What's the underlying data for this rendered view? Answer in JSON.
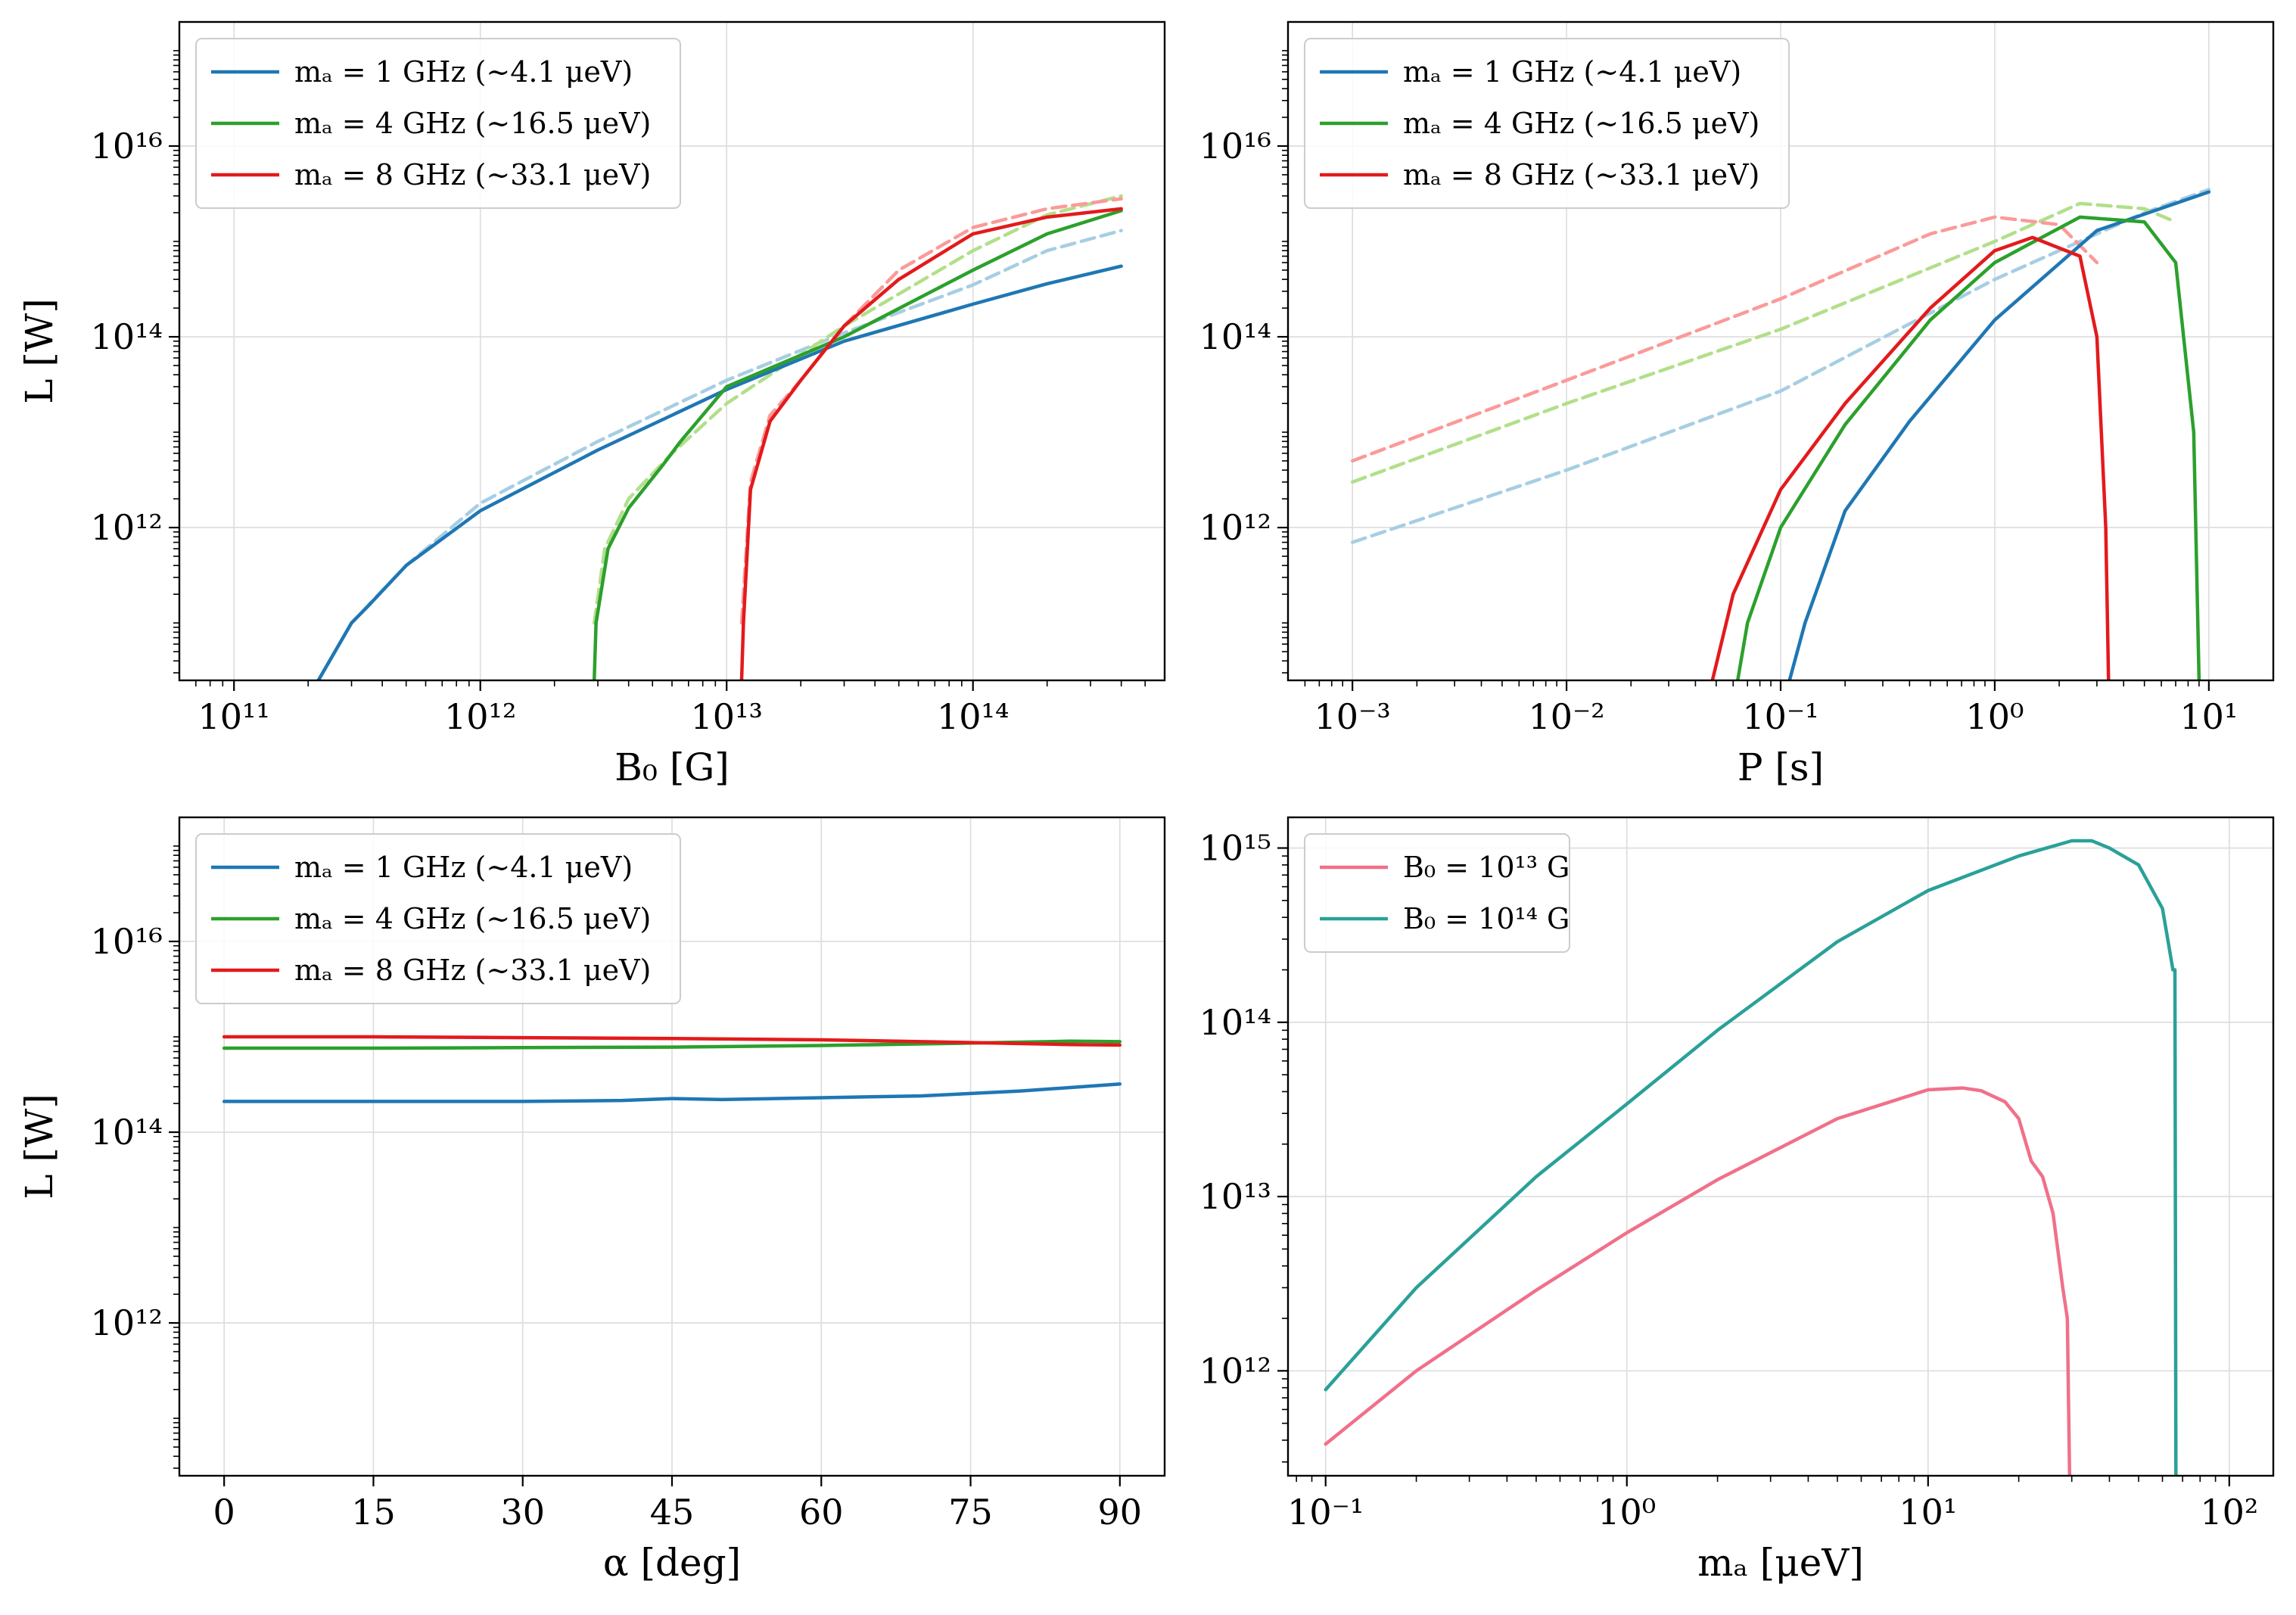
{
  "colors": {
    "blue": "#1f77b4",
    "green": "#2ca02c",
    "red": "#e31a1c",
    "light_blue": "#a6cee3",
    "light_green": "#b2df8a",
    "light_red": "#fb9a99",
    "pink": "#f0708a",
    "teal": "#2aa198"
  },
  "chart_data": [
    {
      "id": "B0",
      "type": "line",
      "xlabel": "B₀ [G]",
      "ylabel": "L [W]",
      "xscale": "log",
      "yscale": "log",
      "xlim": [
        60000000000.0,
        600000000000000.0
      ],
      "ylim": [
        25000000000.0,
        2e+17
      ],
      "xticks": [
        100000000000.0,
        1000000000000.0,
        10000000000000.0,
        100000000000000.0
      ],
      "xtick_labels": [
        "10¹¹",
        "10¹²",
        "10¹³",
        "10¹⁴"
      ],
      "yticks": [
        1000000000000.0,
        100000000000000.0,
        1e+16
      ],
      "ytick_labels": [
        "10¹²",
        "10¹⁴",
        "10¹⁶"
      ],
      "grid": true,
      "legend": {
        "position": "top-left",
        "entries": [
          {
            "label": "mₐ = 1 GHz (∼4.1 μeV)",
            "color": "blue"
          },
          {
            "label": "mₐ = 4 GHz (∼16.5 μeV)",
            "color": "green"
          },
          {
            "label": "mₐ = 8 GHz (∼33.1 μeV)",
            "color": "red"
          }
        ]
      },
      "series": [
        {
          "color": "light_blue",
          "dashed": true,
          "x": [
            220000000000.0,
            300000000000.0,
            500000000000.0,
            1000000000000.0,
            3000000000000.0,
            10000000000000.0,
            30000000000000.0,
            100000000000000.0,
            200000000000000.0,
            400000000000000.0
          ],
          "y": [
            25000000000.0,
            100000000000.0,
            400000000000.0,
            1800000000000.0,
            8000000000000.0,
            35000000000000.0,
            110000000000000.0,
            350000000000000.0,
            800000000000000.0,
            1300000000000000.0
          ]
        },
        {
          "color": "light_green",
          "dashed": true,
          "x": [
            2900000000000.0,
            3200000000000.0,
            4000000000000.0,
            6000000000000.0,
            10000000000000.0,
            30000000000000.0,
            100000000000000.0,
            200000000000000.0,
            400000000000000.0
          ],
          "y": [
            100000000000.0,
            600000000000.0,
            2000000000000.0,
            6000000000000.0,
            20000000000000.0,
            130000000000000.0,
            800000000000000.0,
            1900000000000000.0,
            3000000000000000.0
          ]
        },
        {
          "color": "light_red",
          "dashed": true,
          "x": [
            11500000000000.0,
            12500000000000.0,
            15000000000000.0,
            20000000000000.0,
            30000000000000.0,
            50000000000000.0,
            100000000000000.0,
            200000000000000.0,
            400000000000000.0
          ],
          "y": [
            100000000000.0,
            3000000000000.0,
            15000000000000.0,
            35000000000000.0,
            130000000000000.0,
            500000000000000.0,
            1400000000000000.0,
            2200000000000000.0,
            2800000000000000.0
          ]
        },
        {
          "color": "blue",
          "x": [
            220000000000.0,
            300000000000.0,
            350000000000.0,
            500000000000.0,
            1000000000000.0,
            3000000000000.0,
            10000000000000.0,
            30000000000000.0,
            100000000000000.0,
            200000000000000.0,
            400000000000000.0
          ],
          "y": [
            25000000000.0,
            100000000000.0,
            150000000000.0,
            400000000000.0,
            1500000000000.0,
            6500000000000.0,
            28000000000000.0,
            90000000000000.0,
            220000000000000.0,
            360000000000000.0,
            550000000000000.0
          ]
        },
        {
          "color": "green",
          "x": [
            2900000000000.0,
            2950000000000.0,
            3300000000000.0,
            4000000000000.0,
            5500000000000.0,
            6500000000000.0,
            10000000000000.0,
            30000000000000.0,
            100000000000000.0,
            200000000000000.0,
            400000000000000.0
          ],
          "y": [
            25000000000.0,
            100000000000.0,
            600000000000.0,
            1600000000000.0,
            4500000000000.0,
            8000000000000.0,
            30000000000000.0,
            100000000000000.0,
            500000000000000.0,
            1200000000000000.0,
            2100000000000000.0
          ]
        },
        {
          "color": "red",
          "x": [
            11500000000000.0,
            11700000000000.0,
            12500000000000.0,
            15000000000000.0,
            20000000000000.0,
            30000000000000.0,
            50000000000000.0,
            100000000000000.0,
            200000000000000.0,
            400000000000000.0
          ],
          "y": [
            25000000000.0,
            100000000000.0,
            2500000000000.0,
            13000000000000.0,
            35000000000000.0,
            130000000000000.0,
            400000000000000.0,
            1200000000000000.0,
            1800000000000000.0,
            2200000000000000.0
          ]
        }
      ]
    },
    {
      "id": "P",
      "type": "line",
      "xlabel": "P [s]",
      "ylabel": "",
      "xscale": "log",
      "yscale": "log",
      "xlim": [
        0.0005,
        20
      ],
      "ylim": [
        25000000000.0,
        2e+17
      ],
      "xticks": [
        0.001,
        0.01,
        0.1,
        1,
        10
      ],
      "xtick_labels": [
        "10⁻³",
        "10⁻²",
        "10⁻¹",
        "10⁰",
        "10¹"
      ],
      "yticks": [
        1000000000000.0,
        100000000000000.0,
        1e+16
      ],
      "ytick_labels": [
        "10¹²",
        "10¹⁴",
        "10¹⁶"
      ],
      "grid": true,
      "legend": {
        "position": "top-left",
        "entries": [
          {
            "label": "mₐ = 1 GHz (∼4.1 μeV)",
            "color": "blue"
          },
          {
            "label": "mₐ = 4 GHz (∼16.5 μeV)",
            "color": "green"
          },
          {
            "label": "mₐ = 8 GHz (∼33.1 μeV)",
            "color": "red"
          }
        ]
      },
      "series": [
        {
          "color": "light_blue",
          "dashed": true,
          "x": [
            0.001,
            0.01,
            0.1,
            1,
            5,
            10
          ],
          "y": [
            700000000000.0,
            4000000000000.0,
            27000000000000.0,
            400000000000000.0,
            2000000000000000.0,
            3500000000000000.0
          ]
        },
        {
          "color": "light_green",
          "dashed": true,
          "x": [
            0.001,
            0.01,
            0.1,
            1,
            2.5,
            5,
            7
          ],
          "y": [
            3000000000000.0,
            20000000000000.0,
            120000000000000.0,
            1000000000000000.0,
            2500000000000000.0,
            2200000000000000.0,
            1600000000000000.0
          ]
        },
        {
          "color": "light_red",
          "dashed": true,
          "x": [
            0.001,
            0.01,
            0.1,
            0.5,
            1,
            2,
            3
          ],
          "y": [
            5000000000000.0,
            35000000000000.0,
            250000000000000.0,
            1200000000000000.0,
            1800000000000000.0,
            1500000000000000.0,
            600000000000000.0
          ]
        },
        {
          "color": "blue",
          "x": [
            0.11,
            0.13,
            0.2,
            0.4,
            1,
            3,
            10
          ],
          "y": [
            25000000000.0,
            100000000000.0,
            1500000000000.0,
            13000000000000.0,
            150000000000000.0,
            1300000000000000.0,
            3300000000000000.0
          ]
        },
        {
          "color": "green",
          "x": [
            0.063,
            0.07,
            0.1,
            0.2,
            0.5,
            1,
            2.5,
            5,
            7,
            8.5,
            9
          ],
          "y": [
            25000000000.0,
            100000000000.0,
            1000000000000.0,
            12000000000000.0,
            150000000000000.0,
            600000000000000.0,
            1800000000000000.0,
            1600000000000000.0,
            600000000000000.0,
            10000000000000.0,
            25000000000.0
          ]
        },
        {
          "color": "red",
          "x": [
            0.048,
            0.06,
            0.1,
            0.2,
            0.5,
            1,
            1.5,
            2.5,
            3,
            3.3,
            3.4
          ],
          "y": [
            25000000000.0,
            200000000000.0,
            2500000000000.0,
            20000000000000.0,
            200000000000000.0,
            800000000000000.0,
            1100000000000000.0,
            700000000000000.0,
            100000000000000.0,
            1000000000000.0,
            25000000000.0
          ]
        }
      ]
    },
    {
      "id": "alpha",
      "type": "line",
      "xlabel": "α [deg]",
      "ylabel": "L [W]",
      "xscale": "linear",
      "yscale": "log",
      "xlim": [
        -4.5,
        94.5
      ],
      "ylim": [
        25000000000.0,
        2e+17
      ],
      "xticks": [
        0,
        15,
        30,
        45,
        60,
        75,
        90
      ],
      "xtick_labels": [
        "0",
        "15",
        "30",
        "45",
        "60",
        "75",
        "90"
      ],
      "yticks": [
        1000000000000.0,
        100000000000000.0,
        1e+16
      ],
      "ytick_labels": [
        "10¹²",
        "10¹⁴",
        "10¹⁶"
      ],
      "grid": true,
      "legend": {
        "position": "top-left",
        "entries": [
          {
            "label": "mₐ = 1 GHz (∼4.1 μeV)",
            "color": "blue"
          },
          {
            "label": "mₐ = 4 GHz (∼16.5 μeV)",
            "color": "green"
          },
          {
            "label": "mₐ = 8 GHz (∼33.1 μeV)",
            "color": "red"
          }
        ]
      },
      "series": [
        {
          "color": "blue",
          "x": [
            0,
            10,
            20,
            30,
            40,
            45,
            50,
            60,
            70,
            80,
            90
          ],
          "y": [
            210000000000000.0,
            210000000000000.0,
            210000000000000.0,
            210000000000000.0,
            215000000000000.0,
            225000000000000.0,
            220000000000000.0,
            230000000000000.0,
            240000000000000.0,
            270000000000000.0,
            320000000000000.0
          ]
        },
        {
          "color": "green",
          "x": [
            0,
            15,
            30,
            45,
            60,
            75,
            85,
            90
          ],
          "y": [
            760000000000000.0,
            760000000000000.0,
            770000000000000.0,
            780000000000000.0,
            810000000000000.0,
            860000000000000.0,
            900000000000000.0,
            890000000000000.0
          ]
        },
        {
          "color": "red",
          "x": [
            0,
            15,
            30,
            45,
            60,
            75,
            85,
            90
          ],
          "y": [
            1000000000000000.0,
            1000000000000000.0,
            980000000000000.0,
            960000000000000.0,
            930000000000000.0,
            870000000000000.0,
            830000000000000.0,
            820000000000000.0
          ]
        }
      ]
    },
    {
      "id": "ma",
      "type": "line",
      "xlabel": "mₐ [μeV]",
      "ylabel": "",
      "xscale": "log",
      "yscale": "log",
      "xlim": [
        0.075,
        140
      ],
      "ylim": [
        250000000000.0,
        1500000000000000.0
      ],
      "xticks": [
        0.1,
        1,
        10,
        100
      ],
      "xtick_labels": [
        "10⁻¹",
        "10⁰",
        "10¹",
        "10²"
      ],
      "yticks": [
        1000000000000.0,
        10000000000000.0,
        100000000000000.0,
        1000000000000000.0
      ],
      "ytick_labels": [
        "10¹²",
        "10¹³",
        "10¹⁴",
        "10¹⁵"
      ],
      "grid": true,
      "legend": {
        "position": "top-left",
        "entries": [
          {
            "label": "B₀ = 10¹³ G",
            "color": "pink"
          },
          {
            "label": "B₀ = 10¹⁴ G",
            "color": "teal"
          }
        ]
      },
      "series": [
        {
          "color": "pink",
          "x": [
            0.1,
            0.2,
            0.5,
            1,
            2,
            5,
            10,
            13,
            15,
            18,
            20,
            22,
            24,
            26,
            28,
            29,
            29.5
          ],
          "y": [
            380000000000.0,
            1000000000000.0,
            2900000000000.0,
            6200000000000.0,
            12500000000000.0,
            28000000000000.0,
            41000000000000.0,
            42000000000000.0,
            40500000000000.0,
            35000000000000.0,
            28000000000000.0,
            16000000000000.0,
            13000000000000.0,
            8000000000000.0,
            3000000000000.0,
            2000000000000.0,
            250000000000.0
          ]
        },
        {
          "color": "teal",
          "x": [
            0.1,
            0.2,
            0.5,
            1,
            2,
            5,
            10,
            20,
            30,
            35,
            40,
            50,
            60,
            65,
            66,
            66.5
          ],
          "y": [
            780000000000.0,
            3000000000000.0,
            13000000000000.0,
            34000000000000.0,
            90000000000000.0,
            290000000000000.0,
            570000000000000.0,
            900000000000000.0,
            1100000000000000.0,
            1100000000000000.0,
            1000000000000000.0,
            800000000000000.0,
            450000000000000.0,
            200000000000000.0,
            200000000000000.0,
            250000000000.0
          ]
        }
      ]
    }
  ]
}
